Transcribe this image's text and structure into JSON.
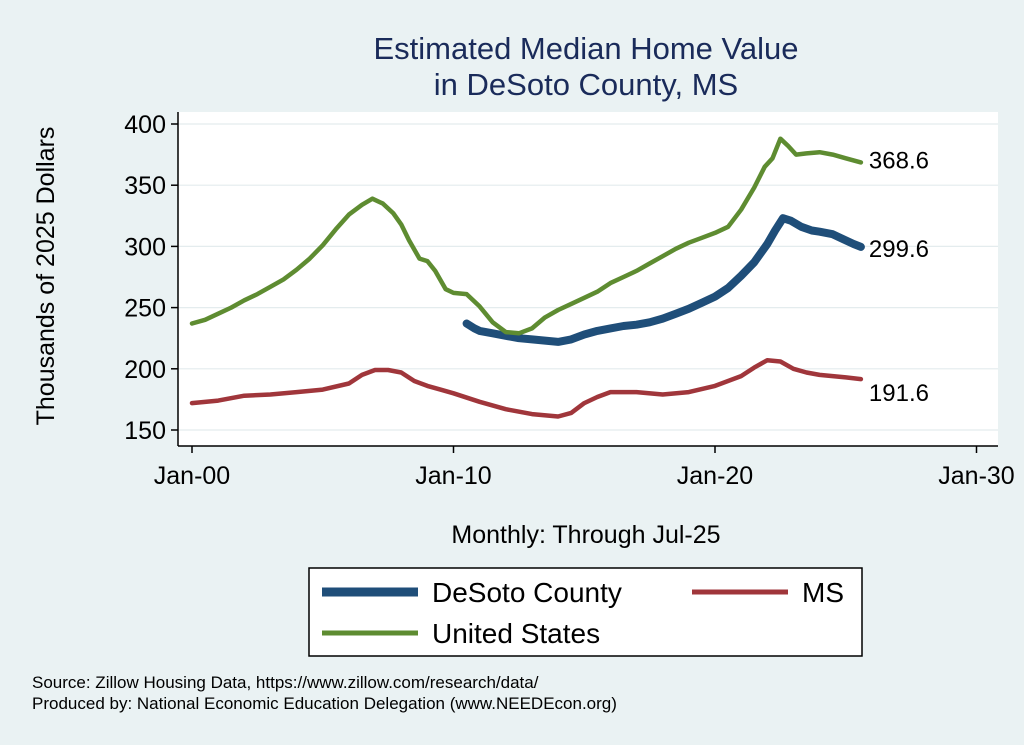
{
  "chart_data": {
    "type": "line",
    "title": [
      "Estimated Median Home Value",
      "in DeSoto County, MS"
    ],
    "xlabel": "Monthly: Through Jul-25",
    "ylabel": "Thousands of 2025 Dollars",
    "x_ticks": [
      "Jan-00",
      "Jan-10",
      "Jan-20",
      "Jan-30"
    ],
    "y_ticks": [
      150,
      200,
      250,
      300,
      350,
      400
    ],
    "xlim": [
      2000,
      2030
    ],
    "ylim": [
      150,
      400
    ],
    "grid": true,
    "legend_position": "bottom",
    "series": [
      {
        "name": "DeSoto County",
        "color": "#1f4e79",
        "end_label": "299.6",
        "points": [
          [
            2010.5,
            237
          ],
          [
            2010.8,
            233
          ],
          [
            2011.0,
            231
          ],
          [
            2011.5,
            229
          ],
          [
            2012.0,
            227
          ],
          [
            2012.5,
            225
          ],
          [
            2013.0,
            224
          ],
          [
            2013.5,
            223
          ],
          [
            2014.0,
            222
          ],
          [
            2014.5,
            224
          ],
          [
            2015.0,
            228
          ],
          [
            2015.5,
            231
          ],
          [
            2016.0,
            233
          ],
          [
            2016.5,
            235
          ],
          [
            2017.0,
            236
          ],
          [
            2017.5,
            238
          ],
          [
            2018.0,
            241
          ],
          [
            2018.5,
            245
          ],
          [
            2019.0,
            249
          ],
          [
            2019.5,
            254
          ],
          [
            2020.0,
            259
          ],
          [
            2020.5,
            266
          ],
          [
            2021.0,
            276
          ],
          [
            2021.5,
            287
          ],
          [
            2022.0,
            302
          ],
          [
            2022.3,
            313
          ],
          [
            2022.6,
            323
          ],
          [
            2022.9,
            321
          ],
          [
            2023.3,
            316
          ],
          [
            2023.7,
            313
          ],
          [
            2024.0,
            312
          ],
          [
            2024.5,
            310
          ],
          [
            2024.9,
            306
          ],
          [
            2025.3,
            302
          ],
          [
            2025.58,
            299.6
          ]
        ]
      },
      {
        "name": "MS",
        "color": "#a0363b",
        "end_label": "191.6",
        "points": [
          [
            2000.0,
            172
          ],
          [
            2001.0,
            174
          ],
          [
            2002.0,
            178
          ],
          [
            2003.0,
            179
          ],
          [
            2004.0,
            181
          ],
          [
            2005.0,
            183
          ],
          [
            2006.0,
            188
          ],
          [
            2006.5,
            195
          ],
          [
            2007.0,
            199
          ],
          [
            2007.5,
            199
          ],
          [
            2008.0,
            197
          ],
          [
            2008.5,
            190
          ],
          [
            2009.0,
            186
          ],
          [
            2009.5,
            183
          ],
          [
            2010.0,
            180
          ],
          [
            2011.0,
            173
          ],
          [
            2012.0,
            167
          ],
          [
            2013.0,
            163
          ],
          [
            2014.0,
            161
          ],
          [
            2014.5,
            164
          ],
          [
            2015.0,
            172
          ],
          [
            2015.5,
            177
          ],
          [
            2016.0,
            181
          ],
          [
            2017.0,
            181
          ],
          [
            2018.0,
            179
          ],
          [
            2019.0,
            181
          ],
          [
            2020.0,
            186
          ],
          [
            2021.0,
            194
          ],
          [
            2021.5,
            201
          ],
          [
            2022.0,
            207
          ],
          [
            2022.5,
            206
          ],
          [
            2023.0,
            200
          ],
          [
            2023.5,
            197
          ],
          [
            2024.0,
            195
          ],
          [
            2024.5,
            194
          ],
          [
            2025.0,
            193
          ],
          [
            2025.58,
            191.6
          ]
        ]
      },
      {
        "name": "United States",
        "color": "#5e8c31",
        "end_label": "368.6",
        "points": [
          [
            2000.0,
            237
          ],
          [
            2000.5,
            240
          ],
          [
            2001.0,
            245
          ],
          [
            2001.5,
            250
          ],
          [
            2002.0,
            256
          ],
          [
            2002.5,
            261
          ],
          [
            2003.0,
            267
          ],
          [
            2003.5,
            273
          ],
          [
            2004.0,
            281
          ],
          [
            2004.5,
            290
          ],
          [
            2005.0,
            301
          ],
          [
            2005.5,
            314
          ],
          [
            2006.0,
            326
          ],
          [
            2006.5,
            334
          ],
          [
            2006.9,
            339
          ],
          [
            2007.3,
            335
          ],
          [
            2007.7,
            327
          ],
          [
            2008.0,
            318
          ],
          [
            2008.3,
            305
          ],
          [
            2008.7,
            290
          ],
          [
            2009.0,
            288
          ],
          [
            2009.3,
            280
          ],
          [
            2009.7,
            265
          ],
          [
            2010.0,
            262
          ],
          [
            2010.5,
            261
          ],
          [
            2011.0,
            251
          ],
          [
            2011.5,
            238
          ],
          [
            2012.0,
            230
          ],
          [
            2012.5,
            229
          ],
          [
            2013.0,
            233
          ],
          [
            2013.5,
            242
          ],
          [
            2014.0,
            248
          ],
          [
            2014.5,
            253
          ],
          [
            2015.0,
            258
          ],
          [
            2015.5,
            263
          ],
          [
            2016.0,
            270
          ],
          [
            2016.5,
            275
          ],
          [
            2017.0,
            280
          ],
          [
            2017.5,
            286
          ],
          [
            2018.0,
            292
          ],
          [
            2018.5,
            298
          ],
          [
            2019.0,
            303
          ],
          [
            2019.5,
            307
          ],
          [
            2020.0,
            311
          ],
          [
            2020.5,
            316
          ],
          [
            2021.0,
            330
          ],
          [
            2021.5,
            348
          ],
          [
            2021.9,
            365
          ],
          [
            2022.2,
            372
          ],
          [
            2022.5,
            388
          ],
          [
            2022.8,
            382
          ],
          [
            2023.1,
            375
          ],
          [
            2023.5,
            376
          ],
          [
            2024.0,
            377
          ],
          [
            2024.5,
            375
          ],
          [
            2025.0,
            372
          ],
          [
            2025.58,
            368.6
          ]
        ]
      }
    ],
    "legend": [
      {
        "name": "DeSoto County",
        "color": "#1f4e79",
        "width": 9
      },
      {
        "name": "MS",
        "color": "#a0363b",
        "width": 5
      },
      {
        "name": "United States",
        "color": "#5e8c31",
        "width": 5
      }
    ]
  },
  "footer": {
    "source": "Source: Zillow Housing Data, https://www.zillow.com/research/data/",
    "produced": "Produced by: National Economic Education Delegation (www.NEEDEcon.org)"
  }
}
